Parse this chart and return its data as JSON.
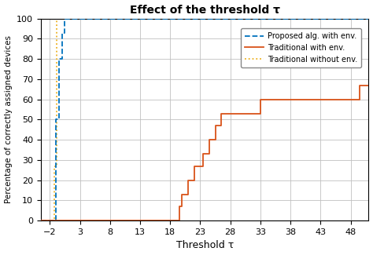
{
  "title": "Effect of the threshold τ",
  "xlabel": "Threshold τ",
  "ylabel": "Percentage of correctly assigned devices",
  "xlim": [
    -3.5,
    51
  ],
  "ylim": [
    0,
    100
  ],
  "xticks": [
    -2,
    3,
    8,
    13,
    18,
    23,
    28,
    33,
    38,
    43,
    48
  ],
  "yticks": [
    0,
    10,
    20,
    30,
    40,
    50,
    60,
    70,
    80,
    90,
    100
  ],
  "proposed_x": [
    -3.5,
    -1.0,
    -1.0,
    -0.5,
    -0.5,
    0.0,
    0.0,
    0.5,
    0.5,
    51
  ],
  "proposed_y": [
    0,
    0,
    50,
    50,
    80,
    80,
    93,
    93,
    100,
    100
  ],
  "traditional_env_x": [
    -3.5,
    19.5,
    19.5,
    20.0,
    20.0,
    21.0,
    21.0,
    22.0,
    22.0,
    23.5,
    23.5,
    24.5,
    24.5,
    25.5,
    25.5,
    26.5,
    26.5,
    27.5,
    27.5,
    33.0,
    33.0,
    46.0,
    46.0,
    48.0,
    48.0,
    49.5,
    49.5,
    51
  ],
  "traditional_env_y": [
    0,
    0,
    7,
    7,
    13,
    13,
    20,
    20,
    27,
    27,
    33,
    33,
    40,
    40,
    47,
    47,
    53,
    53,
    53,
    53,
    60,
    60,
    60,
    60,
    60,
    60,
    67,
    67
  ],
  "traditional_noenv_x": [
    -3.5,
    -1.2,
    -1.2,
    -0.8,
    -0.8,
    51
  ],
  "traditional_noenv_y": [
    0,
    0,
    27,
    27,
    100,
    100
  ],
  "proposed_color": "#0072BD",
  "traditional_env_color": "#D95319",
  "traditional_noenv_color": "#EDB120",
  "proposed_style": "--",
  "traditional_env_style": "-",
  "traditional_noenv_style": ":",
  "proposed_label": "Proposed alg. with env.",
  "traditional_env_label": "Traditional with env.",
  "traditional_noenv_label": "Traditional without env.",
  "linewidth": 1.3,
  "background_color": "#ffffff",
  "grid_color": "#c0c0c0"
}
